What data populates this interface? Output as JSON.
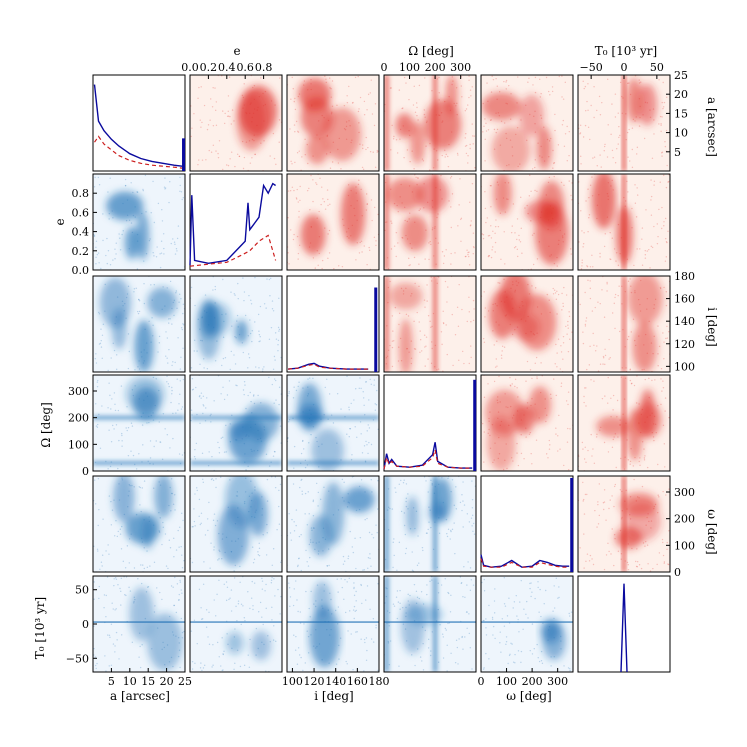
{
  "chart_data": {
    "type": "corner_plot",
    "parameters": [
      {
        "key": "a",
        "label": "a [arcsec]",
        "range": [
          0,
          25
        ],
        "ticks": [
          5,
          10,
          15,
          20,
          25
        ],
        "tick_labels": [
          "5",
          "10",
          "15",
          "20",
          "25"
        ]
      },
      {
        "key": "e",
        "label": "e",
        "range": [
          0,
          1
        ],
        "ticks": [
          0.0,
          0.2,
          0.4,
          0.6,
          0.8
        ],
        "tick_labels": [
          "0.0",
          "0.2",
          "0.4",
          "0.6",
          "0.8"
        ]
      },
      {
        "key": "i",
        "label": "i [deg]",
        "range": [
          95,
          180
        ],
        "ticks": [
          100,
          120,
          140,
          160,
          180
        ],
        "tick_labels": [
          "100",
          "120",
          "140",
          "160",
          "180"
        ]
      },
      {
        "key": "Omega",
        "label": "Ω [deg]",
        "range": [
          0,
          360
        ],
        "ticks": [
          0,
          100,
          200,
          300
        ],
        "tick_labels": [
          "0",
          "100",
          "200",
          "300"
        ]
      },
      {
        "key": "omega",
        "label": "ω [deg]",
        "range": [
          0,
          360
        ],
        "ticks": [
          0,
          100,
          200,
          300
        ],
        "tick_labels": [
          "0",
          "100",
          "200",
          "300"
        ]
      },
      {
        "key": "T0",
        "label": "T₀ [10³ yr]",
        "range": [
          -70,
          70
        ],
        "ticks": [
          -50,
          0,
          50
        ],
        "tick_labels": [
          "−50",
          "0",
          "50"
        ]
      }
    ],
    "histograms": {
      "a": {
        "solid": [
          [
            0.4,
            0.9
          ],
          [
            1.5,
            0.52
          ],
          [
            3,
            0.42
          ],
          [
            5,
            0.33
          ],
          [
            7,
            0.26
          ],
          [
            10,
            0.18
          ],
          [
            13,
            0.13
          ],
          [
            16,
            0.1
          ],
          [
            19,
            0.08
          ],
          [
            22,
            0.06
          ],
          [
            24.2,
            0.05
          ]
        ],
        "dashed": [
          [
            0.4,
            0.3
          ],
          [
            1.5,
            0.36
          ],
          [
            3,
            0.28
          ],
          [
            5,
            0.22
          ],
          [
            7,
            0.16
          ],
          [
            10,
            0.11
          ],
          [
            13,
            0.08
          ],
          [
            16,
            0.06
          ],
          [
            19,
            0.05
          ],
          [
            22,
            0.04
          ],
          [
            24.2,
            0.03
          ]
        ],
        "spike": {
          "x": 24.6,
          "height": 0.34
        }
      },
      "e": {
        "solid": [
          [
            0.0,
            0.05
          ],
          [
            0.02,
            0.78
          ],
          [
            0.05,
            0.1
          ],
          [
            0.2,
            0.07
          ],
          [
            0.4,
            0.1
          ],
          [
            0.55,
            0.25
          ],
          [
            0.6,
            0.3
          ],
          [
            0.63,
            0.7
          ],
          [
            0.65,
            0.42
          ],
          [
            0.75,
            0.55
          ],
          [
            0.8,
            0.88
          ],
          [
            0.85,
            0.8
          ],
          [
            0.9,
            0.9
          ],
          [
            0.93,
            0.88
          ]
        ],
        "dashed": [
          [
            0.0,
            0.04
          ],
          [
            0.2,
            0.06
          ],
          [
            0.4,
            0.08
          ],
          [
            0.55,
            0.15
          ],
          [
            0.65,
            0.2
          ],
          [
            0.75,
            0.3
          ],
          [
            0.85,
            0.36
          ],
          [
            0.93,
            0.1
          ]
        ]
      },
      "i": {
        "solid": [
          [
            96,
            0.03
          ],
          [
            105,
            0.04
          ],
          [
            115,
            0.08
          ],
          [
            120,
            0.09
          ],
          [
            125,
            0.06
          ],
          [
            135,
            0.04
          ],
          [
            150,
            0.03
          ],
          [
            170,
            0.03
          ]
        ],
        "dashed": [
          [
            96,
            0.03
          ],
          [
            105,
            0.04
          ],
          [
            115,
            0.07
          ],
          [
            120,
            0.08
          ],
          [
            125,
            0.05
          ],
          [
            135,
            0.04
          ],
          [
            150,
            0.03
          ],
          [
            170,
            0.03
          ]
        ],
        "spike": {
          "x": 177,
          "height": 0.88
        }
      },
      "Omega": {
        "solid": [
          [
            0,
            0.02
          ],
          [
            10,
            0.18
          ],
          [
            20,
            0.08
          ],
          [
            30,
            0.12
          ],
          [
            50,
            0.05
          ],
          [
            100,
            0.04
          ],
          [
            150,
            0.06
          ],
          [
            190,
            0.17
          ],
          [
            200,
            0.3
          ],
          [
            210,
            0.1
          ],
          [
            250,
            0.04
          ],
          [
            300,
            0.03
          ],
          [
            345,
            0.03
          ]
        ],
        "dashed": [
          [
            0,
            0.02
          ],
          [
            10,
            0.14
          ],
          [
            20,
            0.07
          ],
          [
            30,
            0.1
          ],
          [
            50,
            0.05
          ],
          [
            100,
            0.04
          ],
          [
            150,
            0.05
          ],
          [
            190,
            0.14
          ],
          [
            200,
            0.22
          ],
          [
            210,
            0.08
          ],
          [
            250,
            0.04
          ],
          [
            300,
            0.03
          ],
          [
            345,
            0.03
          ]
        ],
        "spike": {
          "x": 355,
          "height": 0.95
        }
      },
      "omega": {
        "solid": [
          [
            0,
            0.18
          ],
          [
            10,
            0.07
          ],
          [
            40,
            0.05
          ],
          [
            80,
            0.06
          ],
          [
            120,
            0.12
          ],
          [
            160,
            0.05
          ],
          [
            200,
            0.06
          ],
          [
            230,
            0.12
          ],
          [
            260,
            0.1
          ],
          [
            290,
            0.07
          ],
          [
            320,
            0.06
          ],
          [
            345,
            0.06
          ]
        ],
        "dashed": [
          [
            0,
            0.14
          ],
          [
            10,
            0.06
          ],
          [
            40,
            0.05
          ],
          [
            80,
            0.05
          ],
          [
            120,
            0.1
          ],
          [
            160,
            0.05
          ],
          [
            200,
            0.05
          ],
          [
            230,
            0.1
          ],
          [
            260,
            0.08
          ],
          [
            290,
            0.06
          ],
          [
            320,
            0.05
          ],
          [
            345,
            0.05
          ]
        ],
        "spike": {
          "x": 355,
          "height": 0.98
        }
      },
      "T0": {
        "peak_x": 0,
        "peak_height": 0.92
      }
    },
    "colormaps": {
      "lower": "#2171b5",
      "upper": "#de2d26",
      "histogram": "#0a0a9e",
      "dashed": "#cc1f1f"
    },
    "note_shapes": "lower triangle blue 2D density, upper triangle red 2D density, diagonal 1D marginals"
  }
}
